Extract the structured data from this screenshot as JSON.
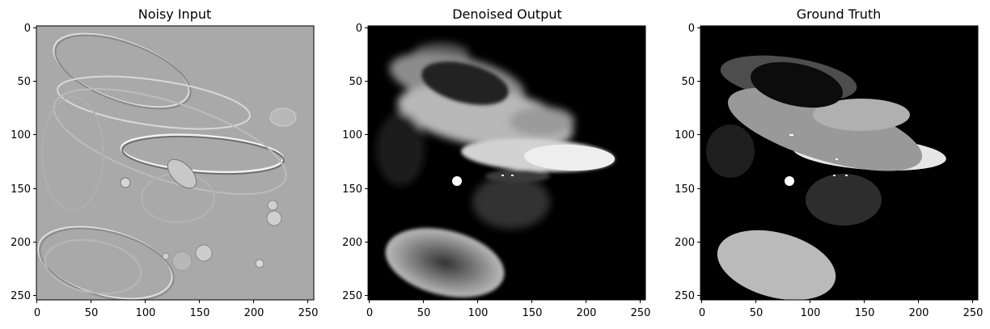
{
  "figure": {
    "panels": [
      {
        "title": "Noisy Input",
        "x_ticks": [
          "0",
          "50",
          "100",
          "150",
          "200",
          "250"
        ],
        "y_ticks": [
          "0",
          "50",
          "100",
          "150",
          "200",
          "250"
        ]
      },
      {
        "title": "Denoised Output",
        "x_ticks": [
          "0",
          "50",
          "100",
          "150",
          "200",
          "250"
        ],
        "y_ticks": [
          "0",
          "50",
          "100",
          "150",
          "200",
          "250"
        ]
      },
      {
        "title": "Ground Truth",
        "x_ticks": [
          "0",
          "50",
          "100",
          "150",
          "200",
          "250"
        ],
        "y_ticks": [
          "0",
          "50",
          "100",
          "150",
          "200",
          "250"
        ]
      }
    ],
    "colors": {
      "noisy_background": "#a9a9a9",
      "image_background": "#000000",
      "frame": "#000000"
    }
  }
}
